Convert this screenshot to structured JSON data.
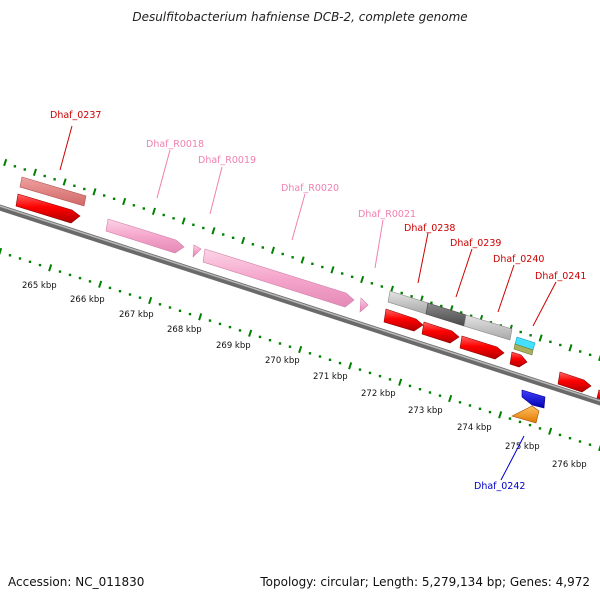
{
  "title": "Desulfitobacterium hafniense DCB-2, complete genome",
  "footer": {
    "accession": "Accession: NC_011830",
    "topology": "Topology: circular; Length: 5,279,134 bp; Genes: 4,972"
  },
  "colors": {
    "cds": "#ff0000",
    "rna": "#f5a6cc",
    "rna_label": "#f080b0",
    "gene_label_forward": "#cc0000",
    "gene_label_reverse": "#0000cc",
    "backbone": "#808080",
    "tick": "#008000",
    "blast_pink": "#e88080",
    "blast_lightgray": "#cccccc",
    "blast_darkgray": "#666666",
    "blast_cyan": "#44e0ff",
    "blast_olive": "#a8b060",
    "reverse_blue": "#0000ee",
    "reverse_orange": "#ff9900"
  },
  "scale": {
    "labels": [
      "265 kbp",
      "266 kbp",
      "267 kbp",
      "268 kbp",
      "269 kbp",
      "270 kbp",
      "271 kbp",
      "272 kbp",
      "273 kbp",
      "274 kbp",
      "275 kbp",
      "276 kbp"
    ]
  },
  "gene_labels": {
    "dhaf_0237": "Dhaf_0237",
    "dhaf_r0018": "Dhaf_R0018",
    "dhaf_r0019": "Dhaf_R0019",
    "dhaf_r0020": "Dhaf_R0020",
    "dhaf_r0021": "Dhaf_R0021",
    "dhaf_0238": "Dhaf_0238",
    "dhaf_0239": "Dhaf_0239",
    "dhaf_0240": "Dhaf_0240",
    "dhaf_0241": "Dhaf_0241",
    "dhaf_0242": "Dhaf_0242"
  }
}
